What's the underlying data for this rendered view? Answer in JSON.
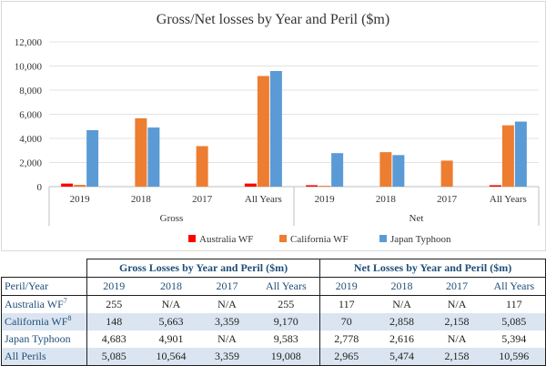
{
  "chart_data": {
    "type": "bar",
    "title": "Gross/Net losses by Year and Peril ($m)",
    "xlabel": "",
    "ylabel": "",
    "ylim": [
      0,
      12000
    ],
    "yticks": [
      "0",
      "2,000",
      "4,000",
      "6,000",
      "8,000",
      "10,000",
      "12,000"
    ],
    "ytick_values": [
      0,
      2000,
      4000,
      6000,
      8000,
      10000,
      12000
    ],
    "grid": true,
    "legend_position": "bottom",
    "groups": [
      {
        "name": "Gross",
        "categories": [
          "2019",
          "2018",
          "2017",
          "All Years"
        ]
      },
      {
        "name": "Net",
        "categories": [
          "2019",
          "2018",
          "2017",
          "All Years"
        ]
      }
    ],
    "series": [
      {
        "name": "Australia WF",
        "color": "#ff0000",
        "values": [
          255,
          0,
          0,
          255,
          117,
          0,
          0,
          117
        ]
      },
      {
        "name": "California WF",
        "color": "#ed7d31",
        "values": [
          148,
          5663,
          3359,
          9170,
          70,
          2858,
          2158,
          5085
        ]
      },
      {
        "name": "Japan Typhoon",
        "color": "#5b9bd5",
        "values": [
          4683,
          4901,
          0,
          9583,
          2778,
          2616,
          0,
          5394
        ]
      }
    ]
  },
  "table": {
    "corner": "Peril/Year",
    "gross_header": "Gross Losses by Year and Peril ($m)",
    "net_header": "Net Losses by Year and Peril ($m)",
    "columns": [
      "2019",
      "2018",
      "2017",
      "All Years",
      "2019",
      "2018",
      "2017",
      "All Years"
    ],
    "rows": [
      {
        "name": "Australia WF",
        "sup": "7",
        "cells": [
          "255",
          "N/A",
          "N/A",
          "255",
          "117",
          "N/A",
          "N/A",
          "117"
        ]
      },
      {
        "name": "California WF",
        "sup": "8",
        "cells": [
          "148",
          "5,663",
          "3,359",
          "9,170",
          "70",
          "2,858",
          "2,158",
          "5,085"
        ]
      },
      {
        "name": "Japan Typhoon",
        "sup": "",
        "cells": [
          "4,683",
          "4,901",
          "N/A",
          "9,583",
          "2,778",
          "2,616",
          "N/A",
          "5,394"
        ]
      },
      {
        "name": "All Perils",
        "sup": "",
        "cells": [
          "5,085",
          "10,564",
          "3,359",
          "19,008",
          "2,965",
          "5,474",
          "2,158",
          "10,596"
        ]
      }
    ]
  }
}
